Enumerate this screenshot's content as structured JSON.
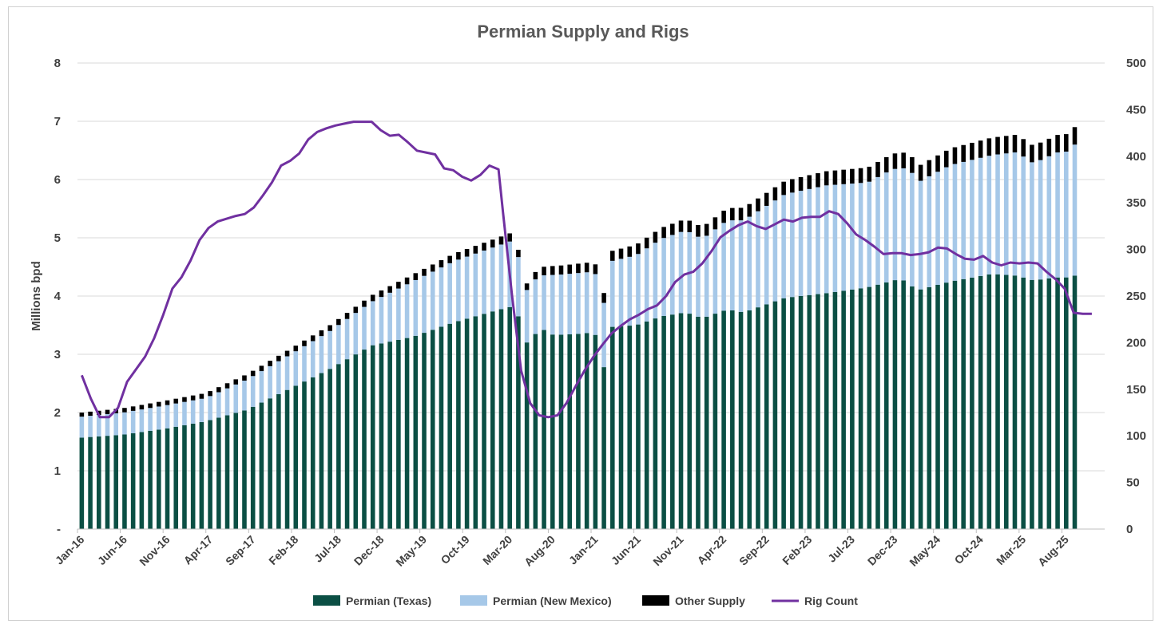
{
  "chart_data": {
    "type": "bar",
    "stacked": true,
    "title": "Permian Supply and Rigs",
    "ylabel": "Millions bpd",
    "ylim": [
      0,
      8
    ],
    "y_ticks": [
      "-",
      "1",
      "2",
      "3",
      "4",
      "5",
      "6",
      "7",
      "8"
    ],
    "y2lim": [
      0,
      500
    ],
    "y2_ticks": [
      "0",
      "50",
      "100",
      "150",
      "200",
      "250",
      "300",
      "350",
      "400",
      "450",
      "500"
    ],
    "x_tick_labels": [
      "Jan-16",
      "Jun-16",
      "Nov-16",
      "Apr-17",
      "Sep-17",
      "Feb-18",
      "Jul-18",
      "Dec-18",
      "May-19",
      "Oct-19",
      "Mar-20",
      "Aug-20",
      "Jan-21",
      "Jun-21",
      "Nov-21",
      "Apr-22",
      "Sep-22",
      "Feb-23",
      "Jul-23",
      "Dec-23",
      "May-24",
      "Oct-24",
      "Mar-25",
      "Aug-25"
    ],
    "legend": [
      "Permian (Texas)",
      "Permian (New Mexico)",
      "Other Supply",
      "Rig Count"
    ],
    "colors": {
      "texas": "#0b4f44",
      "new_mexico": "#a6c8e8",
      "other": "#000000",
      "rigs": "#7030a0"
    },
    "texas_anchors": [
      [
        0,
        1.57
      ],
      [
        5,
        1.62
      ],
      [
        10,
        1.72
      ],
      [
        15,
        1.85
      ],
      [
        20,
        2.05
      ],
      [
        25,
        2.4
      ],
      [
        30,
        2.75
      ],
      [
        35,
        3.15
      ],
      [
        40,
        3.3
      ],
      [
        45,
        3.55
      ],
      [
        50,
        3.75
      ],
      [
        52,
        3.82
      ],
      [
        53,
        3.6
      ],
      [
        54,
        3.1
      ],
      [
        55,
        3.4
      ],
      [
        56,
        3.42
      ],
      [
        57,
        3.33
      ],
      [
        60,
        3.35
      ],
      [
        62,
        3.38
      ],
      [
        63,
        2.7
      ],
      [
        64,
        3.47
      ],
      [
        67,
        3.5
      ],
      [
        70,
        3.65
      ],
      [
        73,
        3.72
      ],
      [
        75,
        3.62
      ],
      [
        78,
        3.77
      ],
      [
        80,
        3.72
      ],
      [
        85,
        3.97
      ],
      [
        90,
        4.05
      ],
      [
        95,
        4.15
      ],
      [
        99,
        4.3
      ],
      [
        101,
        4.1
      ],
      [
        105,
        4.25
      ],
      [
        110,
        4.38
      ],
      [
        113,
        4.35
      ],
      [
        115,
        4.27
      ],
      [
        118,
        4.32
      ],
      [
        119,
        4.32
      ],
      [
        120,
        4.35
      ]
    ],
    "total_anchors": [
      [
        0,
        1.93
      ],
      [
        5,
        2.0
      ],
      [
        10,
        2.12
      ],
      [
        15,
        2.25
      ],
      [
        20,
        2.57
      ],
      [
        25,
        2.98
      ],
      [
        30,
        3.4
      ],
      [
        35,
        3.9
      ],
      [
        40,
        4.25
      ],
      [
        45,
        4.6
      ],
      [
        50,
        4.85
      ],
      [
        52,
        4.95
      ],
      [
        53,
        4.58
      ],
      [
        54,
        3.98
      ],
      [
        55,
        4.35
      ],
      [
        58,
        4.37
      ],
      [
        62,
        4.42
      ],
      [
        63,
        3.8
      ],
      [
        64,
        4.6
      ],
      [
        67,
        4.7
      ],
      [
        70,
        4.98
      ],
      [
        73,
        5.13
      ],
      [
        75,
        4.98
      ],
      [
        78,
        5.3
      ],
      [
        80,
        5.3
      ],
      [
        85,
        5.75
      ],
      [
        90,
        5.9
      ],
      [
        95,
        5.95
      ],
      [
        98,
        6.18
      ],
      [
        100,
        6.2
      ],
      [
        101,
        5.95
      ],
      [
        105,
        6.25
      ],
      [
        110,
        6.42
      ],
      [
        113,
        6.47
      ],
      [
        115,
        6.28
      ],
      [
        118,
        6.47
      ],
      [
        119,
        6.48
      ],
      [
        120,
        6.6
      ]
    ],
    "other_anchors": [
      [
        0,
        0.07
      ],
      [
        10,
        0.08
      ],
      [
        30,
        0.1
      ],
      [
        52,
        0.14
      ],
      [
        53,
        0.12
      ],
      [
        54,
        0.11
      ],
      [
        56,
        0.15
      ],
      [
        100,
        0.27
      ],
      [
        110,
        0.3
      ],
      [
        120,
        0.3
      ]
    ],
    "rig_anchors": [
      [
        0,
        165
      ],
      [
        2,
        140
      ],
      [
        4,
        120
      ],
      [
        6,
        120
      ],
      [
        8,
        130
      ],
      [
        10,
        158
      ],
      [
        14,
        185
      ],
      [
        16,
        205
      ],
      [
        18,
        230
      ],
      [
        20,
        258
      ],
      [
        22,
        270
      ],
      [
        24,
        288
      ],
      [
        26,
        310
      ],
      [
        28,
        323
      ],
      [
        30,
        330
      ],
      [
        32,
        333
      ],
      [
        34,
        336
      ],
      [
        36,
        338
      ],
      [
        38,
        345
      ],
      [
        40,
        358
      ],
      [
        42,
        372
      ],
      [
        44,
        390
      ],
      [
        46,
        395
      ],
      [
        48,
        403
      ],
      [
        50,
        418
      ],
      [
        52,
        426
      ],
      [
        54,
        430
      ],
      [
        56,
        433
      ],
      [
        58,
        435
      ],
      [
        60,
        437
      ],
      [
        62,
        437
      ],
      [
        64,
        437
      ],
      [
        66,
        428
      ],
      [
        68,
        422
      ],
      [
        70,
        423
      ],
      [
        72,
        415
      ],
      [
        74,
        406
      ],
      [
        76,
        404
      ],
      [
        78,
        402
      ],
      [
        80,
        387
      ],
      [
        82,
        385
      ],
      [
        84,
        378
      ],
      [
        86,
        374
      ],
      [
        88,
        380
      ],
      [
        90,
        390
      ],
      [
        92,
        386
      ],
      [
        93,
        340
      ],
      [
        95,
        250
      ],
      [
        97,
        170
      ],
      [
        99,
        135
      ],
      [
        101,
        122
      ],
      [
        103,
        120
      ],
      [
        105,
        122
      ],
      [
        107,
        135
      ],
      [
        109,
        153
      ],
      [
        111,
        170
      ],
      [
        113,
        185
      ],
      [
        115,
        198
      ],
      [
        117,
        210
      ],
      [
        119,
        218
      ],
      [
        121,
        225
      ],
      [
        123,
        230
      ],
      [
        125,
        236
      ],
      [
        127,
        240
      ],
      [
        129,
        250
      ],
      [
        131,
        265
      ],
      [
        133,
        273
      ],
      [
        135,
        276
      ],
      [
        137,
        285
      ],
      [
        139,
        298
      ],
      [
        141,
        313
      ],
      [
        143,
        320
      ],
      [
        145,
        326
      ],
      [
        147,
        330
      ],
      [
        149,
        325
      ],
      [
        151,
        322
      ],
      [
        153,
        327
      ],
      [
        155,
        332
      ],
      [
        157,
        330
      ],
      [
        159,
        334
      ],
      [
        161,
        335
      ],
      [
        163,
        335
      ],
      [
        165,
        341
      ],
      [
        167,
        338
      ],
      [
        169,
        328
      ],
      [
        171,
        316
      ],
      [
        173,
        310
      ],
      [
        175,
        303
      ],
      [
        177,
        295
      ],
      [
        179,
        296
      ],
      [
        181,
        296
      ],
      [
        183,
        294
      ],
      [
        185,
        295
      ],
      [
        187,
        297
      ],
      [
        189,
        302
      ],
      [
        191,
        301
      ],
      [
        193,
        295
      ],
      [
        195,
        290
      ],
      [
        197,
        289
      ],
      [
        199,
        293
      ],
      [
        201,
        286
      ],
      [
        203,
        283
      ],
      [
        205,
        286
      ],
      [
        207,
        285
      ],
      [
        209,
        286
      ],
      [
        211,
        285
      ],
      [
        213,
        276
      ],
      [
        215,
        268
      ],
      [
        217,
        258
      ],
      [
        219,
        232
      ],
      [
        221,
        231
      ],
      [
        223,
        231
      ]
    ],
    "months": 117,
    "rig_months": 112
  }
}
